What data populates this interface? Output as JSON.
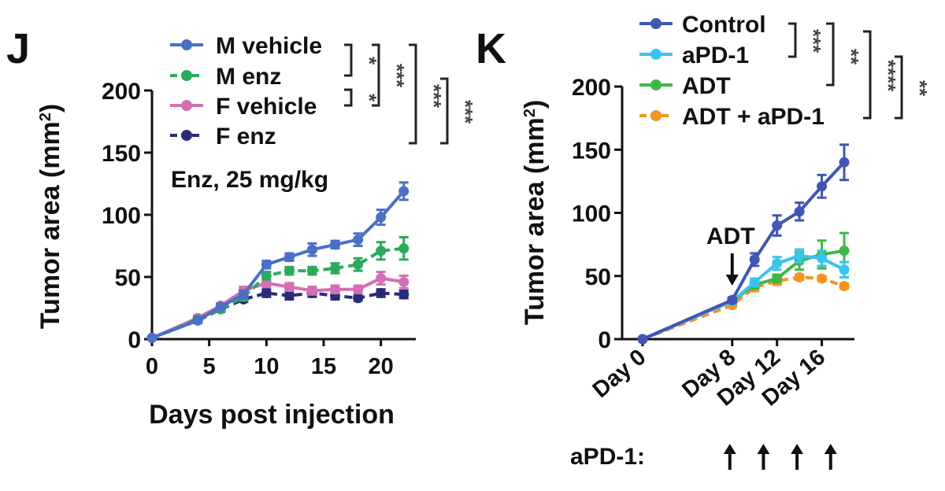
{
  "panels": [
    {
      "letter": "J",
      "annotation": "Enz, 25 mg/kg",
      "significance": [
        "*",
        "*",
        "***",
        "***",
        "***"
      ]
    },
    {
      "letter": "K",
      "annotation": "ADT",
      "treatment_label": "aPD-1:",
      "treatment_days": [
        8,
        11,
        14,
        17
      ],
      "significance": [
        "***",
        "**",
        "****",
        "**"
      ]
    }
  ],
  "chart_data": [
    {
      "type": "line",
      "title": "",
      "xlabel": "Days post injection",
      "ylabel": "Tumor area (mm²)",
      "xlim": [
        0,
        22.5
      ],
      "ylim": [
        0,
        200
      ],
      "xticks": [
        0,
        5,
        10,
        15,
        20
      ],
      "yticks": [
        0,
        50,
        100,
        150,
        200
      ],
      "grid": false,
      "legend_position": "top",
      "series": [
        {
          "name": "M vehicle",
          "color": "#4A6FC9",
          "dashed": false,
          "x": [
            0,
            4,
            6,
            8,
            10,
            12,
            14,
            16,
            18,
            20,
            22
          ],
          "y": [
            1,
            15,
            26,
            36,
            60,
            66,
            72,
            76,
            80,
            98,
            119
          ],
          "err": [
            1,
            2,
            2,
            3,
            3,
            3,
            5,
            3,
            5,
            6,
            7
          ]
        },
        {
          "name": "M enz",
          "color": "#2BAA5C",
          "dashed": true,
          "x": [
            0,
            4,
            6,
            8,
            10,
            12,
            14,
            16,
            18,
            20,
            22
          ],
          "y": [
            1,
            16,
            24,
            34,
            51,
            55,
            55,
            57,
            60,
            71,
            73
          ],
          "err": [
            1,
            2,
            2,
            3,
            3,
            3,
            3,
            4,
            5,
            7,
            9
          ]
        },
        {
          "name": "F vehicle",
          "color": "#D36FB4",
          "dashed": false,
          "x": [
            0,
            4,
            6,
            8,
            10,
            12,
            14,
            16,
            18,
            20,
            22
          ],
          "y": [
            1,
            17,
            27,
            39,
            45,
            42,
            39,
            40,
            40,
            49,
            46
          ],
          "err": [
            1,
            2,
            2,
            3,
            3,
            3,
            3,
            3,
            3,
            5,
            5
          ]
        },
        {
          "name": "F enz",
          "color": "#2B2A7A",
          "dashed": true,
          "x": [
            0,
            4,
            6,
            8,
            10,
            12,
            14,
            16,
            18,
            20,
            22
          ],
          "y": [
            1,
            15,
            24,
            32,
            37,
            35,
            37,
            35,
            33,
            37,
            36
          ],
          "err": [
            1,
            2,
            2,
            2,
            3,
            3,
            3,
            3,
            2,
            3,
            3
          ]
        }
      ]
    },
    {
      "type": "line",
      "title": "",
      "xlabel": "",
      "ylabel": "Tumor area (mm²)",
      "xlim": [
        0,
        18.5
      ],
      "ylim": [
        0,
        200
      ],
      "xticks": [
        0,
        8,
        12,
        16
      ],
      "xticklabels": [
        "Day 0",
        "Day 8",
        "Day 12",
        "Day 16"
      ],
      "yticks": [
        0,
        50,
        100,
        150,
        200
      ],
      "grid": false,
      "legend_position": "top",
      "series": [
        {
          "name": "Control",
          "color": "#4055B8",
          "dashed": false,
          "x": [
            0,
            8,
            10,
            12,
            14,
            16,
            18
          ],
          "y": [
            0,
            31,
            63,
            90,
            101,
            121,
            140
          ],
          "err": [
            0,
            2,
            5,
            8,
            7,
            9,
            14
          ]
        },
        {
          "name": "aPD-1",
          "color": "#36C5F0",
          "dashed": false,
          "x": [
            0,
            8,
            10,
            12,
            14,
            16,
            18
          ],
          "y": [
            0,
            30,
            45,
            60,
            66,
            64,
            55
          ],
          "err": [
            0,
            2,
            3,
            5,
            5,
            6,
            6
          ]
        },
        {
          "name": "ADT",
          "color": "#3DB845",
          "dashed": false,
          "x": [
            0,
            8,
            10,
            12,
            14,
            16,
            18
          ],
          "y": [
            0,
            30,
            43,
            48,
            62,
            67,
            70
          ],
          "err": [
            0,
            2,
            3,
            3,
            7,
            11,
            14
          ]
        },
        {
          "name": "ADT + aPD-1",
          "color": "#F7931E",
          "dashed": true,
          "x": [
            0,
            8,
            10,
            12,
            14,
            16,
            18
          ],
          "y": [
            0,
            27,
            41,
            46,
            49,
            48,
            42
          ],
          "err": [
            0,
            2,
            3,
            3,
            2,
            2,
            2
          ]
        }
      ]
    }
  ]
}
